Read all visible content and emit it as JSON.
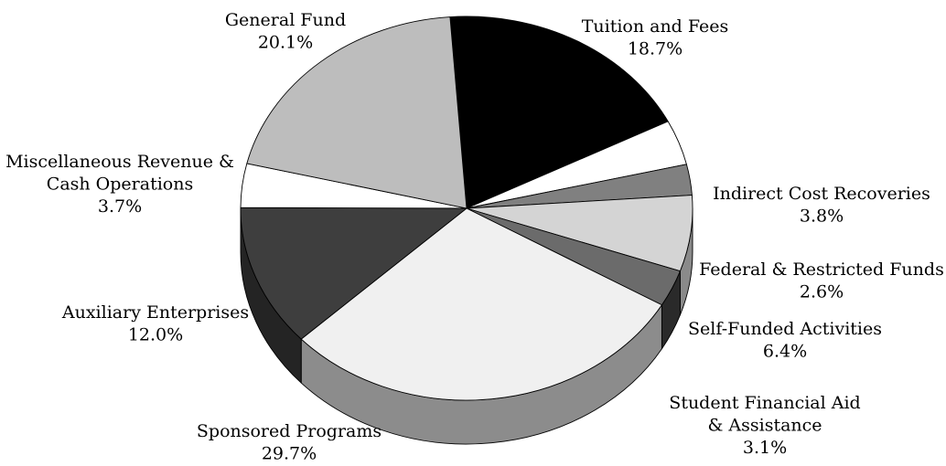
{
  "chart_data": {
    "type": "pie",
    "style": "3d",
    "legend": "none",
    "slices": [
      {
        "name": "Tuition and Fees",
        "value": 18.7,
        "pct_label": "18.7%",
        "label_lines": [
          "Tuition and Fees"
        ],
        "color": "#000000",
        "side_color": "#000000"
      },
      {
        "name": "Indirect Cost Recoveries",
        "value": 3.8,
        "pct_label": "3.8%",
        "label_lines": [
          "Indirect Cost Recoveries"
        ],
        "color": "#ffffff",
        "side_color": "#ffffff"
      },
      {
        "name": "Federal & Restricted Funds",
        "value": 2.6,
        "pct_label": "2.6%",
        "label_lines": [
          "Federal & Restricted Funds"
        ],
        "color": "#808080",
        "side_color": "#5a5a5a"
      },
      {
        "name": "Self-Funded Activities",
        "value": 6.4,
        "pct_label": "6.4%",
        "label_lines": [
          "Self-Funded Activities"
        ],
        "color": "#d4d4d4",
        "side_color": "#8a8a8a"
      },
      {
        "name": "Student Financial Aid & Assistance",
        "value": 3.1,
        "pct_label": "3.1%",
        "label_lines": [
          "Student Financial Aid",
          "& Assistance"
        ],
        "color": "#6b6b6b",
        "side_color": "#2a2a2a"
      },
      {
        "name": "Sponsored Programs",
        "value": 29.7,
        "pct_label": "29.7%",
        "label_lines": [
          "Sponsored Programs"
        ],
        "color": "#f0f0f0",
        "side_color": "#8c8c8c"
      },
      {
        "name": "Auxiliary Enterprises",
        "value": 12.0,
        "pct_label": "12.0%",
        "label_lines": [
          "Auxiliary Enterprises"
        ],
        "color": "#3e3e3e",
        "side_color": "#242424"
      },
      {
        "name": "Miscellaneous Revenue & Cash Operations",
        "value": 3.7,
        "pct_label": "3.7%",
        "label_lines": [
          "Miscellaneous Revenue &",
          "Cash Operations"
        ],
        "color": "#ffffff",
        "side_color": "#ffffff"
      },
      {
        "name": "General Fund",
        "value": 20.1,
        "pct_label": "20.1%",
        "label_lines": [
          "General Fund"
        ],
        "color": "#bdbdbd",
        "side_color": "#8a8a8a"
      }
    ]
  }
}
